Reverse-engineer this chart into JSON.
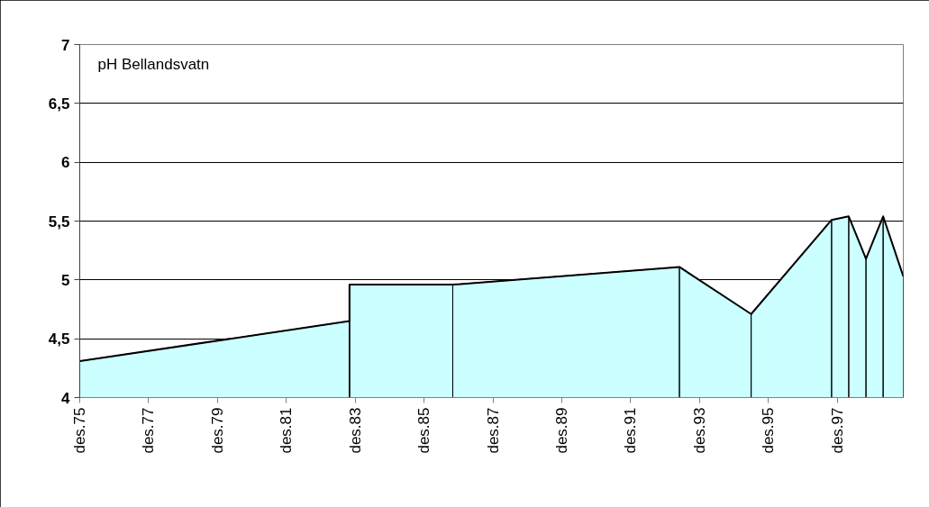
{
  "chart_data": {
    "type": "area",
    "title": "pH Bellandsvatn",
    "x": [
      "1975-12",
      "1983-10",
      "1983-10",
      "1986-10",
      "1993-05",
      "1995-06",
      "1997-10",
      "1998-04",
      "1998-10",
      "1999-04",
      "1999-11"
    ],
    "series": [
      {
        "color": "#ccffff",
        "values": [
          4.31,
          4.65,
          4.96,
          4.96,
          5.11,
          4.71,
          5.51,
          5.54,
          5.18,
          5.54,
          5.03
        ]
      }
    ],
    "xlim": [
      "1975-12",
      "1999-11"
    ],
    "xticks": [
      {
        "value": "1975-12",
        "label": "des.75"
      },
      {
        "value": "1977-12",
        "label": "des.77"
      },
      {
        "value": "1979-12",
        "label": "des.79"
      },
      {
        "value": "1981-12",
        "label": "des.81"
      },
      {
        "value": "1983-12",
        "label": "des.83"
      },
      {
        "value": "1985-12",
        "label": "des.85"
      },
      {
        "value": "1987-12",
        "label": "des.87"
      },
      {
        "value": "1989-12",
        "label": "des.89"
      },
      {
        "value": "1991-12",
        "label": "des.91"
      },
      {
        "value": "1993-12",
        "label": "des.93"
      },
      {
        "value": "1995-12",
        "label": "des.95"
      },
      {
        "value": "1997-12",
        "label": "des.97"
      }
    ],
    "ylim": [
      4,
      7
    ],
    "yticks": [
      {
        "value": 4,
        "label": "4"
      },
      {
        "value": 4.5,
        "label": "4,5"
      },
      {
        "value": 5,
        "label": "5"
      },
      {
        "value": 5.5,
        "label": "5,5"
      },
      {
        "value": 6,
        "label": "6"
      },
      {
        "value": 6.5,
        "label": "6,5"
      },
      {
        "value": 7,
        "label": "7"
      }
    ],
    "grid": "y"
  }
}
